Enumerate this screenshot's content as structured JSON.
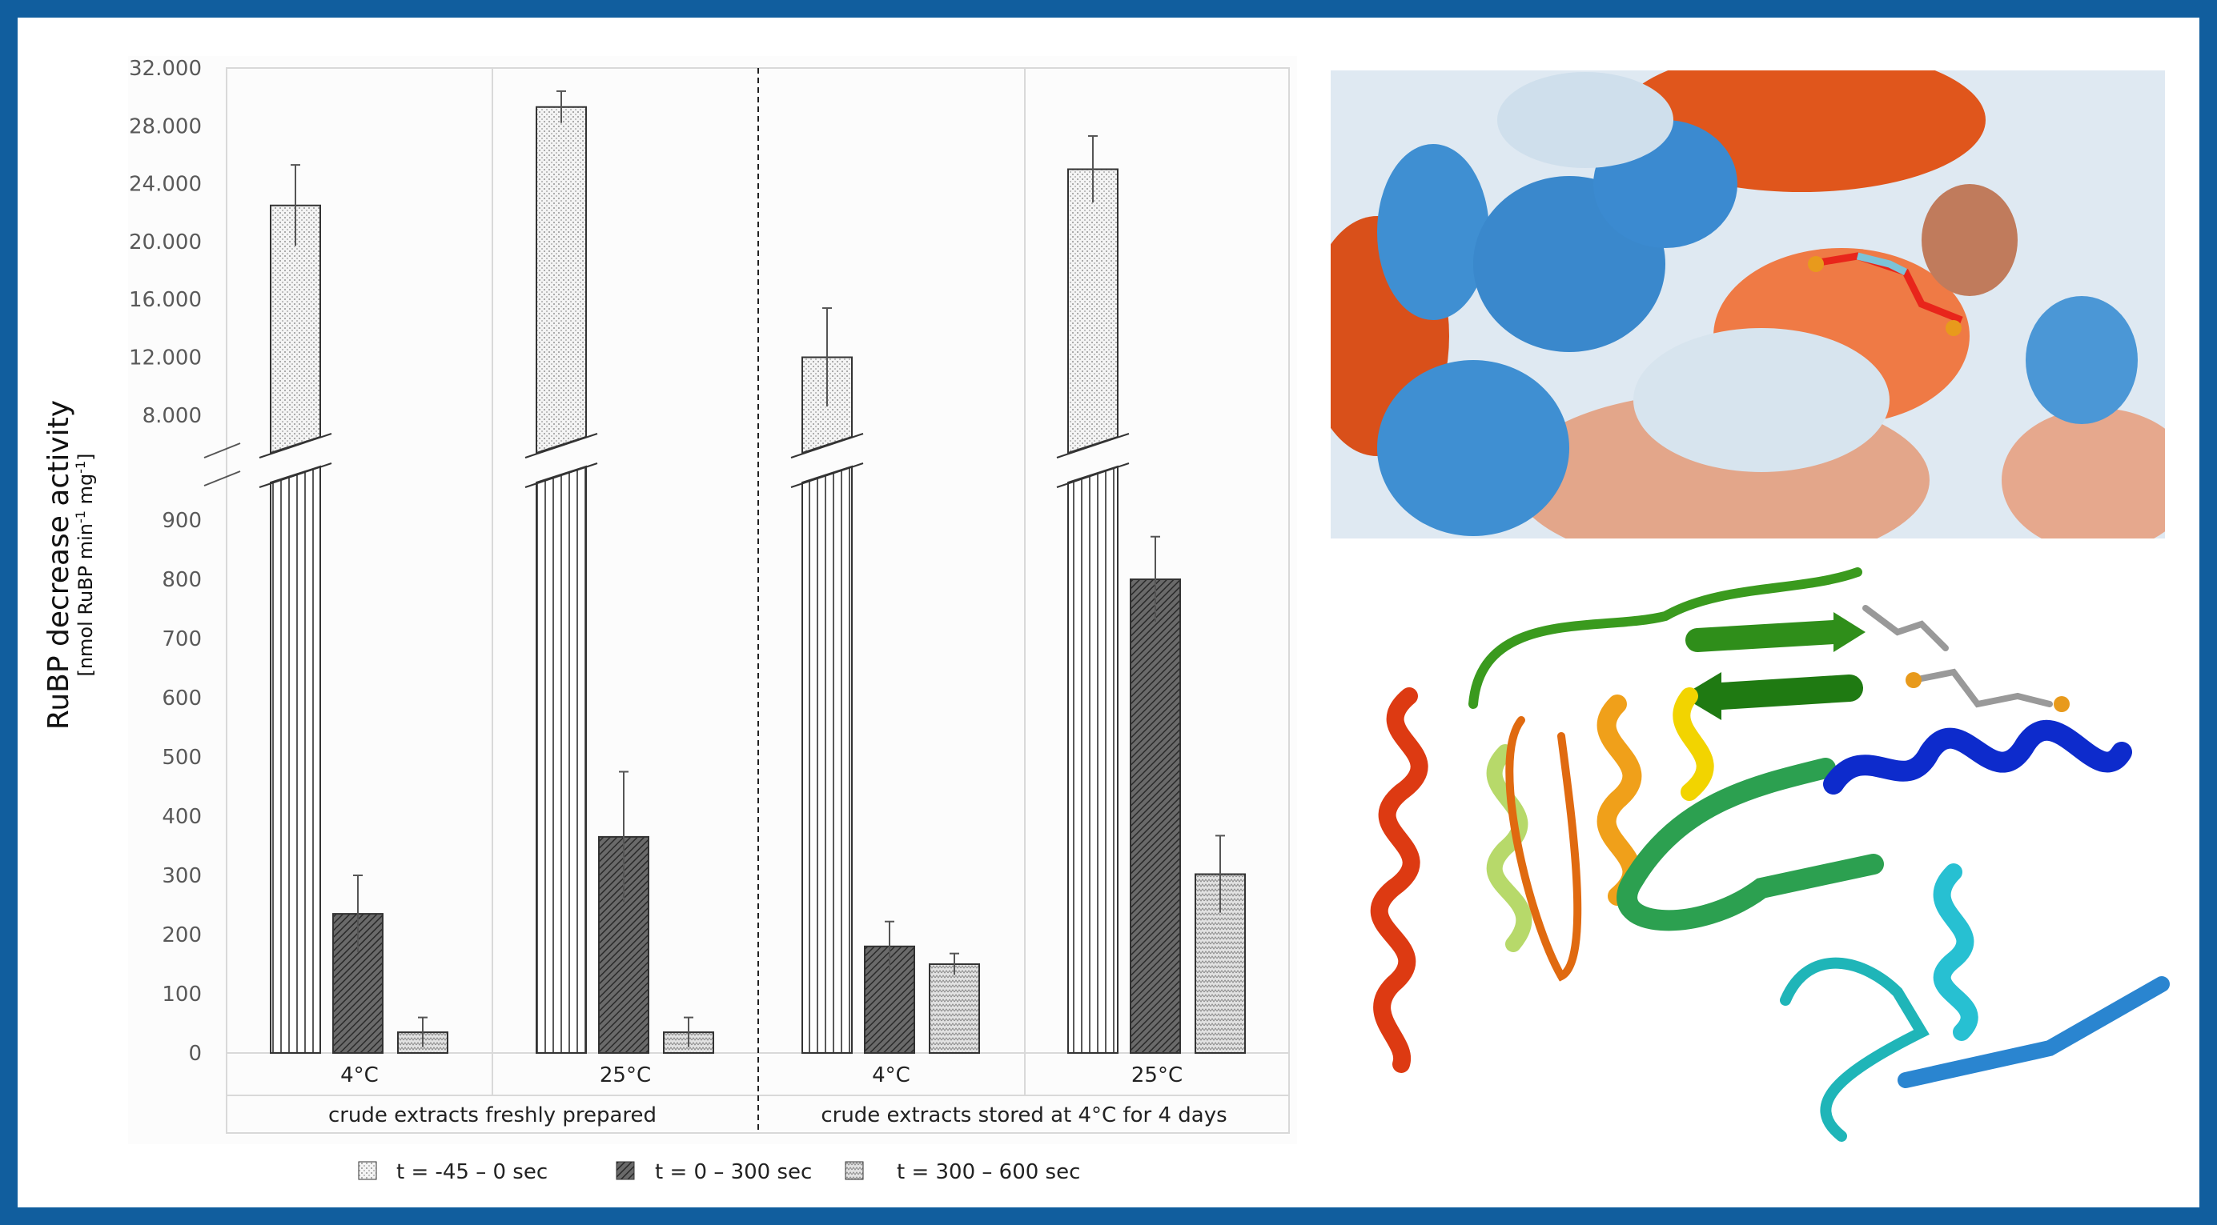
{
  "chart_data": {
    "type": "bar",
    "ylabel": "RuBP decrease activity",
    "ylabel_unit_parts": [
      "[nmol RuBP min",
      "-1",
      " mg",
      "-1",
      "]"
    ],
    "axis_break": true,
    "upper_ticks": [
      "8.000",
      "12.000",
      "16.000",
      "20.000",
      "24.000",
      "28.000",
      "32.000"
    ],
    "upper_tick_values": [
      8000,
      12000,
      16000,
      20000,
      24000,
      28000,
      32000
    ],
    "lower_ticks": [
      "0",
      "100",
      "200",
      "300",
      "400",
      "500",
      "600",
      "700",
      "800",
      "900"
    ],
    "lower_tick_values": [
      0,
      100,
      200,
      300,
      400,
      500,
      600,
      700,
      800,
      900
    ],
    "categories": [
      "4°C",
      "25°C",
      "4°C",
      "25°C"
    ],
    "groups": [
      "crude extracts freshly prepared",
      "crude extracts stored at 4°C for 4 days"
    ],
    "series": [
      {
        "name": "t = -45 – 0 sec",
        "values": [
          22500,
          29300,
          12000,
          25000
        ],
        "errors": [
          2800,
          1100,
          3400,
          2300
        ],
        "pattern": "dots"
      },
      {
        "name": "t = 0 – 300 sec",
        "values": [
          235,
          365,
          180,
          800
        ],
        "errors": [
          65,
          110,
          42,
          72
        ],
        "pattern": "dark-hatch"
      },
      {
        "name": "t = 300 – 600 sec",
        "values": [
          35,
          35,
          150,
          302
        ],
        "errors": [
          25,
          25,
          18,
          65
        ],
        "pattern": "light-zigzag"
      }
    ],
    "legend_position": "bottom",
    "grid": false
  },
  "colors": {
    "frame": "#115e9e",
    "dark_bar": "#555555",
    "light_bar": "#c8c8c8"
  },
  "images": {
    "top": "protein-surface-with-ligand",
    "bottom": "protein-ribbon-with-ligand"
  }
}
